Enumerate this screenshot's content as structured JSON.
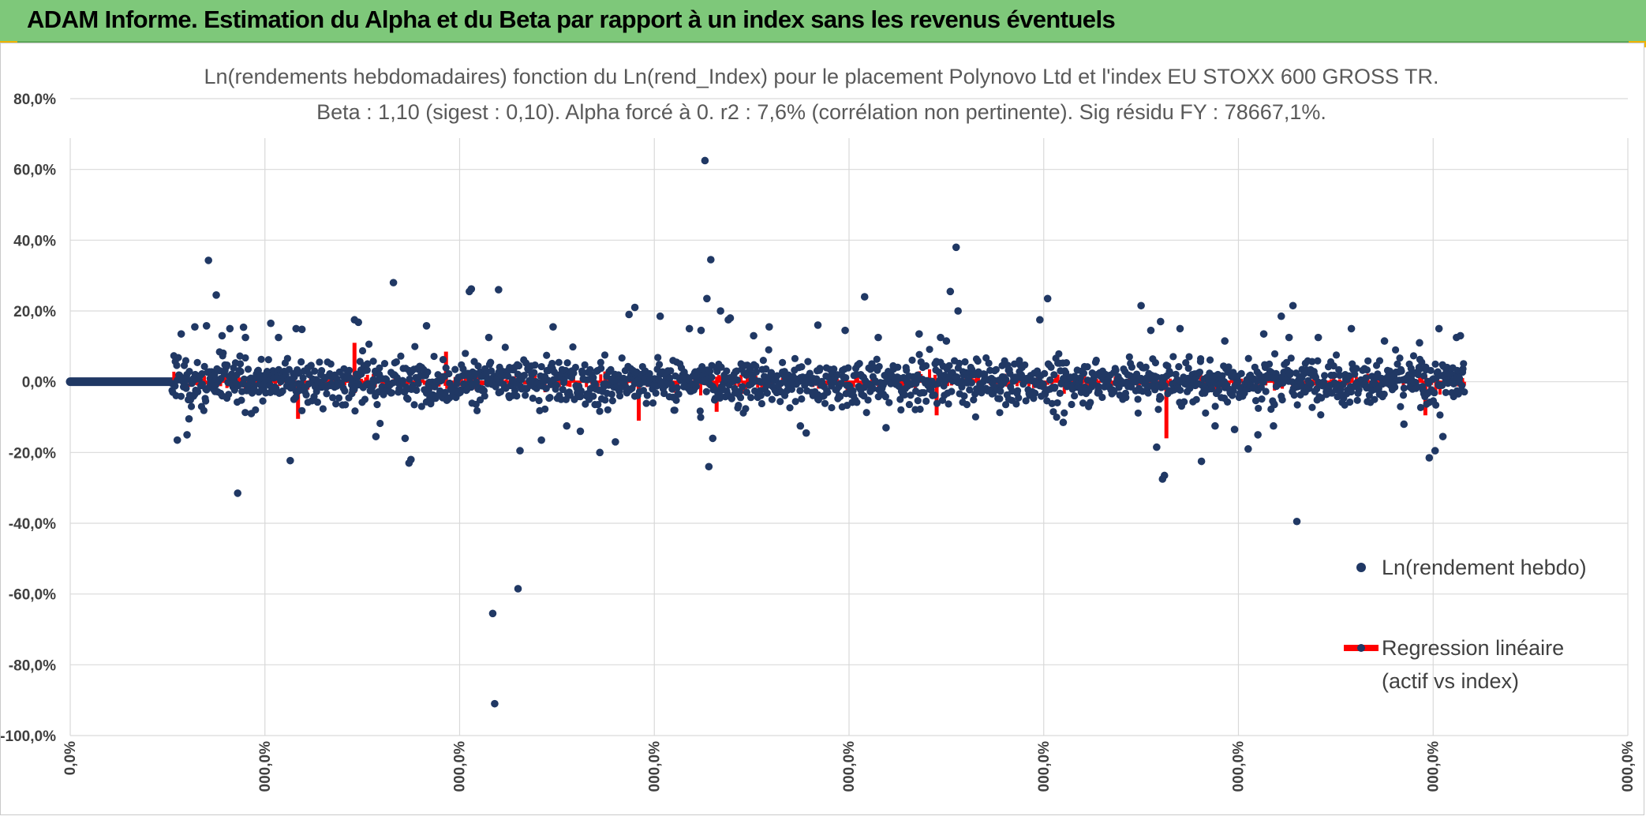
{
  "header": {
    "title": "ADAM Informe. Estimation du Alpha et du Beta par rapport à un index sans les revenus éventuels",
    "bg_color": "#7ec87a"
  },
  "chart_data": {
    "type": "scatter",
    "title": "Ln(rendements hebdomadaires) fonction du Ln(rend_Index) pour le placement Polynovo Ltd et l'index EU STOXX 600 GROSS TR.",
    "subtitle": "Beta : 1,10 (sigest : 0,10). Alpha forcé à 0. r2 : 7,6% (corrélation non pertinente). Sig résidu FY : 78667,1%.",
    "xlabel": "",
    "ylabel": "",
    "ylim": [
      -100,
      80
    ],
    "yticks": [
      80,
      60,
      40,
      20,
      0,
      -20,
      -40,
      -60,
      -80,
      -100
    ],
    "ytick_labels": [
      "80,0%",
      "60,0%",
      "40,0%",
      "20,0%",
      "0,0%",
      "-20,0%",
      "-40,0%",
      "-60,0%",
      "-80,0%",
      "-100,0%"
    ],
    "xlim": [
      0,
      8
    ],
    "xticks": [
      0,
      1,
      2,
      3,
      4,
      5,
      6,
      7,
      8
    ],
    "xtick_labels": [
      "0,0%",
      "000,0%",
      "000,0%",
      "000,0%",
      "000,0%",
      "000,0%",
      "000,0%",
      "000,0%",
      "000,0%"
    ],
    "grid": true,
    "legend_position": "right",
    "series": [
      {
        "name": "Ln(rendement hebdo)",
        "kind": "markers",
        "color": "#203864",
        "flat_segment": {
          "x_start": 0,
          "x_end": 0.52,
          "y": 0
        },
        "points": [
          {
            "x": 0.55,
            "y": -16.5
          },
          {
            "x": 0.57,
            "y": 13.5
          },
          {
            "x": 0.6,
            "y": -15.0
          },
          {
            "x": 0.61,
            "y": -10.5
          },
          {
            "x": 0.64,
            "y": 15.5
          },
          {
            "x": 0.7,
            "y": 15.8
          },
          {
            "x": 0.71,
            "y": 34.3
          },
          {
            "x": 0.75,
            "y": 24.5
          },
          {
            "x": 0.78,
            "y": 13.0
          },
          {
            "x": 0.82,
            "y": 15.0
          },
          {
            "x": 0.86,
            "y": -31.5
          },
          {
            "x": 0.89,
            "y": 15.4
          },
          {
            "x": 0.9,
            "y": 12.5
          },
          {
            "x": 0.93,
            "y": -9.0
          },
          {
            "x": 1.03,
            "y": 16.5
          },
          {
            "x": 1.07,
            "y": 12.5
          },
          {
            "x": 1.13,
            "y": -22.3
          },
          {
            "x": 1.16,
            "y": 15.0
          },
          {
            "x": 1.19,
            "y": 14.8
          },
          {
            "x": 1.46,
            "y": 17.5
          },
          {
            "x": 1.48,
            "y": 16.8
          },
          {
            "x": 1.57,
            "y": -15.5
          },
          {
            "x": 1.66,
            "y": 28.0
          },
          {
            "x": 1.72,
            "y": -16.0
          },
          {
            "x": 1.74,
            "y": -23.0
          },
          {
            "x": 1.75,
            "y": -22.0
          },
          {
            "x": 1.83,
            "y": 15.8
          },
          {
            "x": 2.05,
            "y": 25.5
          },
          {
            "x": 2.06,
            "y": 26.2
          },
          {
            "x": 2.15,
            "y": 12.5
          },
          {
            "x": 2.17,
            "y": -65.5
          },
          {
            "x": 2.18,
            "y": -91.0
          },
          {
            "x": 2.2,
            "y": 26.0
          },
          {
            "x": 2.3,
            "y": -58.5
          },
          {
            "x": 2.31,
            "y": -19.5
          },
          {
            "x": 2.42,
            "y": -16.5
          },
          {
            "x": 2.48,
            "y": 15.5
          },
          {
            "x": 2.55,
            "y": -12.5
          },
          {
            "x": 2.62,
            "y": -14.0
          },
          {
            "x": 2.72,
            "y": -20.0
          },
          {
            "x": 2.8,
            "y": -17.0
          },
          {
            "x": 2.87,
            "y": 19.0
          },
          {
            "x": 2.9,
            "y": 21.0
          },
          {
            "x": 3.03,
            "y": 18.5
          },
          {
            "x": 3.18,
            "y": 15.0
          },
          {
            "x": 3.24,
            "y": 14.5
          },
          {
            "x": 3.26,
            "y": 62.5
          },
          {
            "x": 3.27,
            "y": 23.5
          },
          {
            "x": 3.28,
            "y": -24.0
          },
          {
            "x": 3.29,
            "y": 34.5
          },
          {
            "x": 3.3,
            "y": -16.0
          },
          {
            "x": 3.34,
            "y": 20.0
          },
          {
            "x": 3.38,
            "y": 17.5
          },
          {
            "x": 3.39,
            "y": 18.0
          },
          {
            "x": 3.51,
            "y": 13.0
          },
          {
            "x": 3.59,
            "y": 15.5
          },
          {
            "x": 3.75,
            "y": -12.5
          },
          {
            "x": 3.78,
            "y": -14.5
          },
          {
            "x": 3.84,
            "y": 16.0
          },
          {
            "x": 3.98,
            "y": 14.5
          },
          {
            "x": 4.08,
            "y": 24.0
          },
          {
            "x": 4.15,
            "y": 12.5
          },
          {
            "x": 4.19,
            "y": -13.0
          },
          {
            "x": 4.36,
            "y": 13.5
          },
          {
            "x": 4.47,
            "y": 12.5
          },
          {
            "x": 4.5,
            "y": 11.5
          },
          {
            "x": 4.52,
            "y": 25.5
          },
          {
            "x": 4.55,
            "y": 38.0
          },
          {
            "x": 4.56,
            "y": 20.0
          },
          {
            "x": 4.98,
            "y": 17.5
          },
          {
            "x": 5.02,
            "y": 23.5
          },
          {
            "x": 5.1,
            "y": -11.5
          },
          {
            "x": 5.5,
            "y": 21.5
          },
          {
            "x": 5.55,
            "y": 14.5
          },
          {
            "x": 5.58,
            "y": -18.5
          },
          {
            "x": 5.6,
            "y": 17.0
          },
          {
            "x": 5.61,
            "y": -27.5
          },
          {
            "x": 5.62,
            "y": -26.5
          },
          {
            "x": 5.7,
            "y": 15.0
          },
          {
            "x": 5.81,
            "y": -22.5
          },
          {
            "x": 5.88,
            "y": -12.5
          },
          {
            "x": 5.93,
            "y": 11.5
          },
          {
            "x": 5.98,
            "y": -13.5
          },
          {
            "x": 6.05,
            "y": -19.0
          },
          {
            "x": 6.1,
            "y": -15.0
          },
          {
            "x": 6.13,
            "y": 13.5
          },
          {
            "x": 6.18,
            "y": -12.5
          },
          {
            "x": 6.22,
            "y": 18.5
          },
          {
            "x": 6.26,
            "y": 12.5
          },
          {
            "x": 6.28,
            "y": 21.5
          },
          {
            "x": 6.3,
            "y": -39.5
          },
          {
            "x": 6.41,
            "y": 12.5
          },
          {
            "x": 6.58,
            "y": 15.0
          },
          {
            "x": 6.75,
            "y": 11.5
          },
          {
            "x": 6.85,
            "y": -12.0
          },
          {
            "x": 6.93,
            "y": 11.0
          },
          {
            "x": 6.98,
            "y": -21.5
          },
          {
            "x": 7.01,
            "y": -19.5
          },
          {
            "x": 7.03,
            "y": 15.0
          },
          {
            "x": 7.05,
            "y": -15.5
          },
          {
            "x": 7.12,
            "y": 12.5
          },
          {
            "x": 7.14,
            "y": 13.0
          }
        ],
        "cloud": {
          "x_start": 0.52,
          "x_end": 7.16,
          "spread_pct": 5,
          "approx_count": 1900
        }
      },
      {
        "name": "Regression linéaire (actif vs index)",
        "kind": "line",
        "color": "#ff0000",
        "beta": 1.1,
        "alpha": 0,
        "notable_values": [
          {
            "x": 5.63,
            "y": -16.0
          },
          {
            "x": 2.92,
            "y": -11.0
          },
          {
            "x": 4.45,
            "y": -9.5
          },
          {
            "x": 1.17,
            "y": -10.5
          },
          {
            "x": 3.32,
            "y": -8.5
          },
          {
            "x": 6.96,
            "y": -9.5
          },
          {
            "x": 1.46,
            "y": 11.0
          },
          {
            "x": 1.93,
            "y": 8.5
          }
        ]
      }
    ],
    "legend": [
      {
        "label": "Ln(rendement hebdo)"
      },
      {
        "label": "Regression linéaire",
        "label_line2": "(actif vs index)"
      }
    ]
  }
}
